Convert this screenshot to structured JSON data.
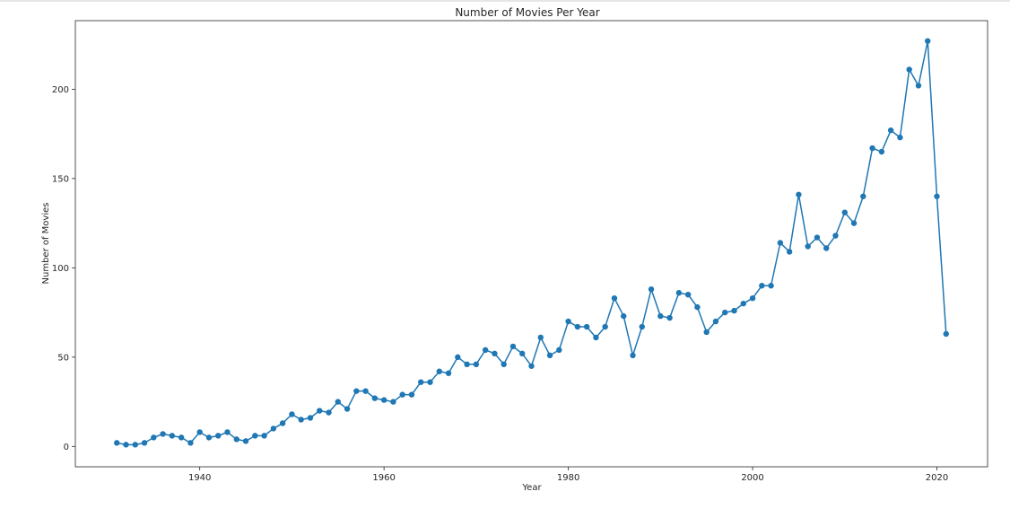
{
  "chart_data": {
    "type": "line",
    "title": "Number of Movies Per Year",
    "xlabel": "Year",
    "ylabel": "Number of Movies",
    "xlim": [
      1926.5,
      1925.5
    ],
    "xticks": [
      1940,
      1960,
      1980,
      2000,
      2020
    ],
    "yticks": [
      0,
      50,
      100,
      150,
      200
    ],
    "ylim": [
      -11.4,
      238.4
    ],
    "grid": false,
    "series": [
      {
        "color": "#1f77b4",
        "marker": "circle",
        "x": [
          1931,
          1932,
          1933,
          1934,
          1935,
          1936,
          1937,
          1938,
          1939,
          1940,
          1941,
          1942,
          1943,
          1944,
          1945,
          1946,
          1947,
          1948,
          1949,
          1950,
          1951,
          1952,
          1953,
          1954,
          1955,
          1956,
          1957,
          1958,
          1959,
          1960,
          1961,
          1962,
          1963,
          1964,
          1965,
          1966,
          1967,
          1968,
          1969,
          1970,
          1971,
          1972,
          1973,
          1974,
          1975,
          1976,
          1977,
          1978,
          1979,
          1980,
          1981,
          1982,
          1983,
          1984,
          1985,
          1986,
          1987,
          1988,
          1989,
          1990,
          1991,
          1992,
          1993,
          1994,
          1995,
          1996,
          1997,
          1998,
          1999,
          2000,
          2001,
          2002,
          2003,
          2004,
          2005,
          2006,
          2007,
          2008,
          2009,
          2010,
          2011,
          2012,
          2013,
          2014,
          2015,
          2016,
          2017,
          2018,
          2019,
          2020,
          2021
        ],
        "y": [
          2,
          1,
          1,
          2,
          5,
          7,
          6,
          5,
          2,
          8,
          5,
          6,
          8,
          4,
          3,
          6,
          6,
          10,
          13,
          18,
          15,
          16,
          20,
          19,
          25,
          21,
          31,
          31,
          27,
          26,
          25,
          29,
          29,
          36,
          36,
          42,
          41,
          50,
          46,
          46,
          54,
          52,
          46,
          56,
          52,
          45,
          61,
          51,
          54,
          70,
          67,
          67,
          61,
          67,
          83,
          73,
          51,
          67,
          88,
          73,
          72,
          86,
          85,
          78,
          64,
          70,
          75,
          76,
          80,
          83,
          90,
          90,
          114,
          109,
          141,
          112,
          117,
          111,
          118,
          131,
          125,
          140,
          167,
          165,
          177,
          173,
          211,
          202,
          227,
          140,
          63
        ]
      }
    ]
  }
}
